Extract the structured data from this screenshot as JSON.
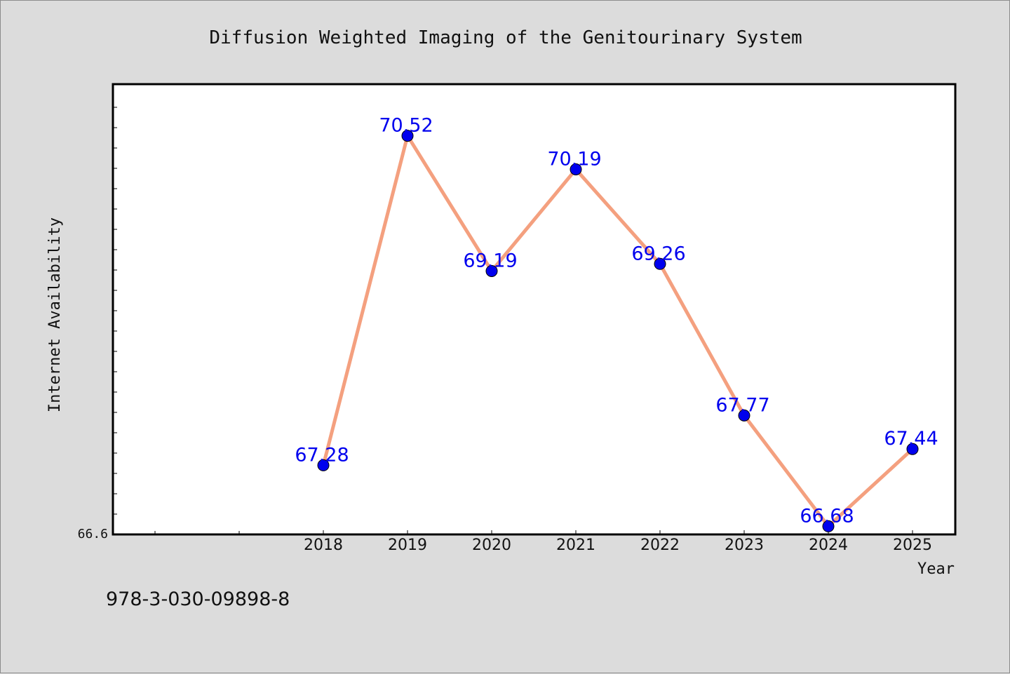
{
  "chart_data": {
    "type": "line",
    "title": "Diffusion Weighted Imaging of the Genitourinary System",
    "xlabel": "Year",
    "ylabel": "Internet Availability",
    "ymin_label": "66.6",
    "x": [
      "2018",
      "2019",
      "2020",
      "2021",
      "2022",
      "2023",
      "2024",
      "2025"
    ],
    "series": [
      {
        "values": [
          67.28,
          70.52,
          69.19,
          70.19,
          69.26,
          67.77,
          66.68,
          67.44
        ],
        "labels": [
          "67.28",
          "70.52",
          "69.19",
          "70.19",
          "69.26",
          "67.77",
          "66.68",
          "67.44"
        ]
      }
    ],
    "ylim": [
      66.6,
      71.0
    ],
    "grid": false,
    "line_color": "#f4a07f",
    "marker_color": "#0000ee",
    "label_color": "#0000ee"
  },
  "footer": {
    "isbn": "978-3-030-09898-8"
  }
}
